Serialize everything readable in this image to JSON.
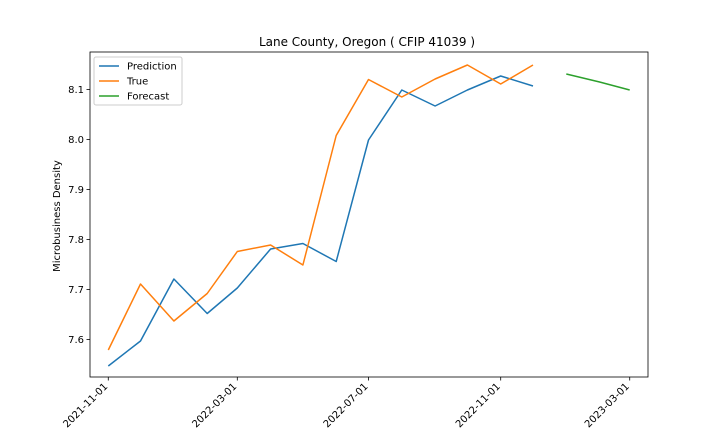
{
  "chart_data": {
    "type": "line",
    "title": "Lane County, Oregon ( CFIP 41039 )",
    "xlabel": "",
    "ylabel": "Microbusiness Density",
    "x_ticks": [
      "2021-11-01",
      "2022-03-01",
      "2022-07-01",
      "2022-11-01",
      "2023-03-01"
    ],
    "y_ticks": [
      "7.6",
      "7.7",
      "7.8",
      "7.9",
      "8.0",
      "8.1"
    ],
    "ylim": [
      7.525,
      8.175
    ],
    "xlim": [
      "2021-10-15",
      "2023-03-18"
    ],
    "grid": false,
    "legend_position": "top-left",
    "series": [
      {
        "name": "Prediction",
        "color": "#1f77b4",
        "points": [
          [
            "2021-11-01",
            7.547
          ],
          [
            "2021-12-01",
            7.597
          ],
          [
            "2022-01-01",
            7.721
          ],
          [
            "2022-02-01",
            7.652
          ],
          [
            "2022-03-01",
            7.703
          ],
          [
            "2022-04-01",
            7.781
          ],
          [
            "2022-05-01",
            7.792
          ],
          [
            "2022-06-01",
            7.756
          ],
          [
            "2022-07-01",
            7.999
          ],
          [
            "2022-08-01",
            8.099
          ],
          [
            "2022-09-01",
            8.067
          ],
          [
            "2022-10-01",
            8.099
          ],
          [
            "2022-11-01",
            8.127
          ],
          [
            "2022-12-01",
            8.107
          ]
        ]
      },
      {
        "name": "True",
        "color": "#ff7f0e",
        "points": [
          [
            "2021-11-01",
            7.579
          ],
          [
            "2021-12-01",
            7.711
          ],
          [
            "2022-01-01",
            7.637
          ],
          [
            "2022-02-01",
            7.692
          ],
          [
            "2022-03-01",
            7.776
          ],
          [
            "2022-04-01",
            7.789
          ],
          [
            "2022-05-01",
            7.749
          ],
          [
            "2022-06-01",
            8.008
          ],
          [
            "2022-07-01",
            8.12
          ],
          [
            "2022-08-01",
            8.085
          ],
          [
            "2022-09-01",
            8.121
          ],
          [
            "2022-10-01",
            8.149
          ],
          [
            "2022-11-01",
            8.111
          ],
          [
            "2022-12-01",
            8.149
          ]
        ]
      },
      {
        "name": "Forecast",
        "color": "#2ca02c",
        "points": [
          [
            "2023-01-01",
            8.131
          ],
          [
            "2023-02-01",
            8.115
          ],
          [
            "2023-03-01",
            8.099
          ]
        ]
      }
    ]
  }
}
